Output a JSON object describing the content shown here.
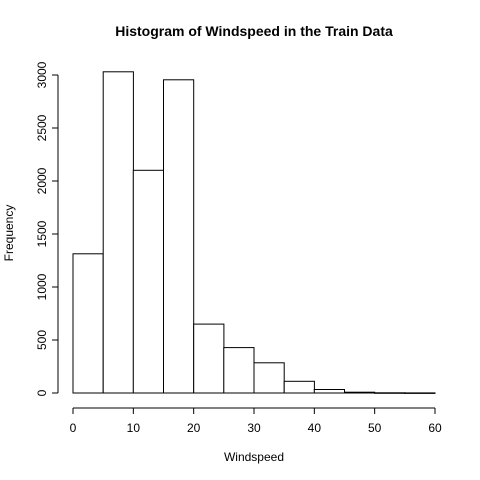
{
  "chart_data": {
    "type": "bar",
    "title": "Histogram of Windspeed in the Train Data",
    "xlabel": "Windspeed",
    "ylabel": "Frequency",
    "bins": [
      {
        "from": 0,
        "to": 5,
        "count": 1313
      },
      {
        "from": 5,
        "to": 10,
        "count": 3030
      },
      {
        "from": 10,
        "to": 15,
        "count": 2101
      },
      {
        "from": 15,
        "to": 20,
        "count": 2955
      },
      {
        "from": 20,
        "to": 25,
        "count": 650
      },
      {
        "from": 25,
        "to": 30,
        "count": 428
      },
      {
        "from": 30,
        "to": 35,
        "count": 285
      },
      {
        "from": 35,
        "to": 40,
        "count": 110
      },
      {
        "from": 40,
        "to": 45,
        "count": 33
      },
      {
        "from": 45,
        "to": 50,
        "count": 8
      },
      {
        "from": 50,
        "to": 55,
        "count": 2
      },
      {
        "from": 55,
        "to": 60,
        "count": 1
      }
    ],
    "xlim": [
      0,
      60
    ],
    "ylim": [
      0,
      3000
    ],
    "x_ticks": [
      "0",
      "10",
      "20",
      "30",
      "40",
      "50",
      "60"
    ],
    "y_ticks": [
      "0",
      "500",
      "1000",
      "1500",
      "2000",
      "2500",
      "3000"
    ],
    "grid": false,
    "legend": "none",
    "bar_fill": "#ffffff",
    "bar_stroke": "#000000"
  }
}
